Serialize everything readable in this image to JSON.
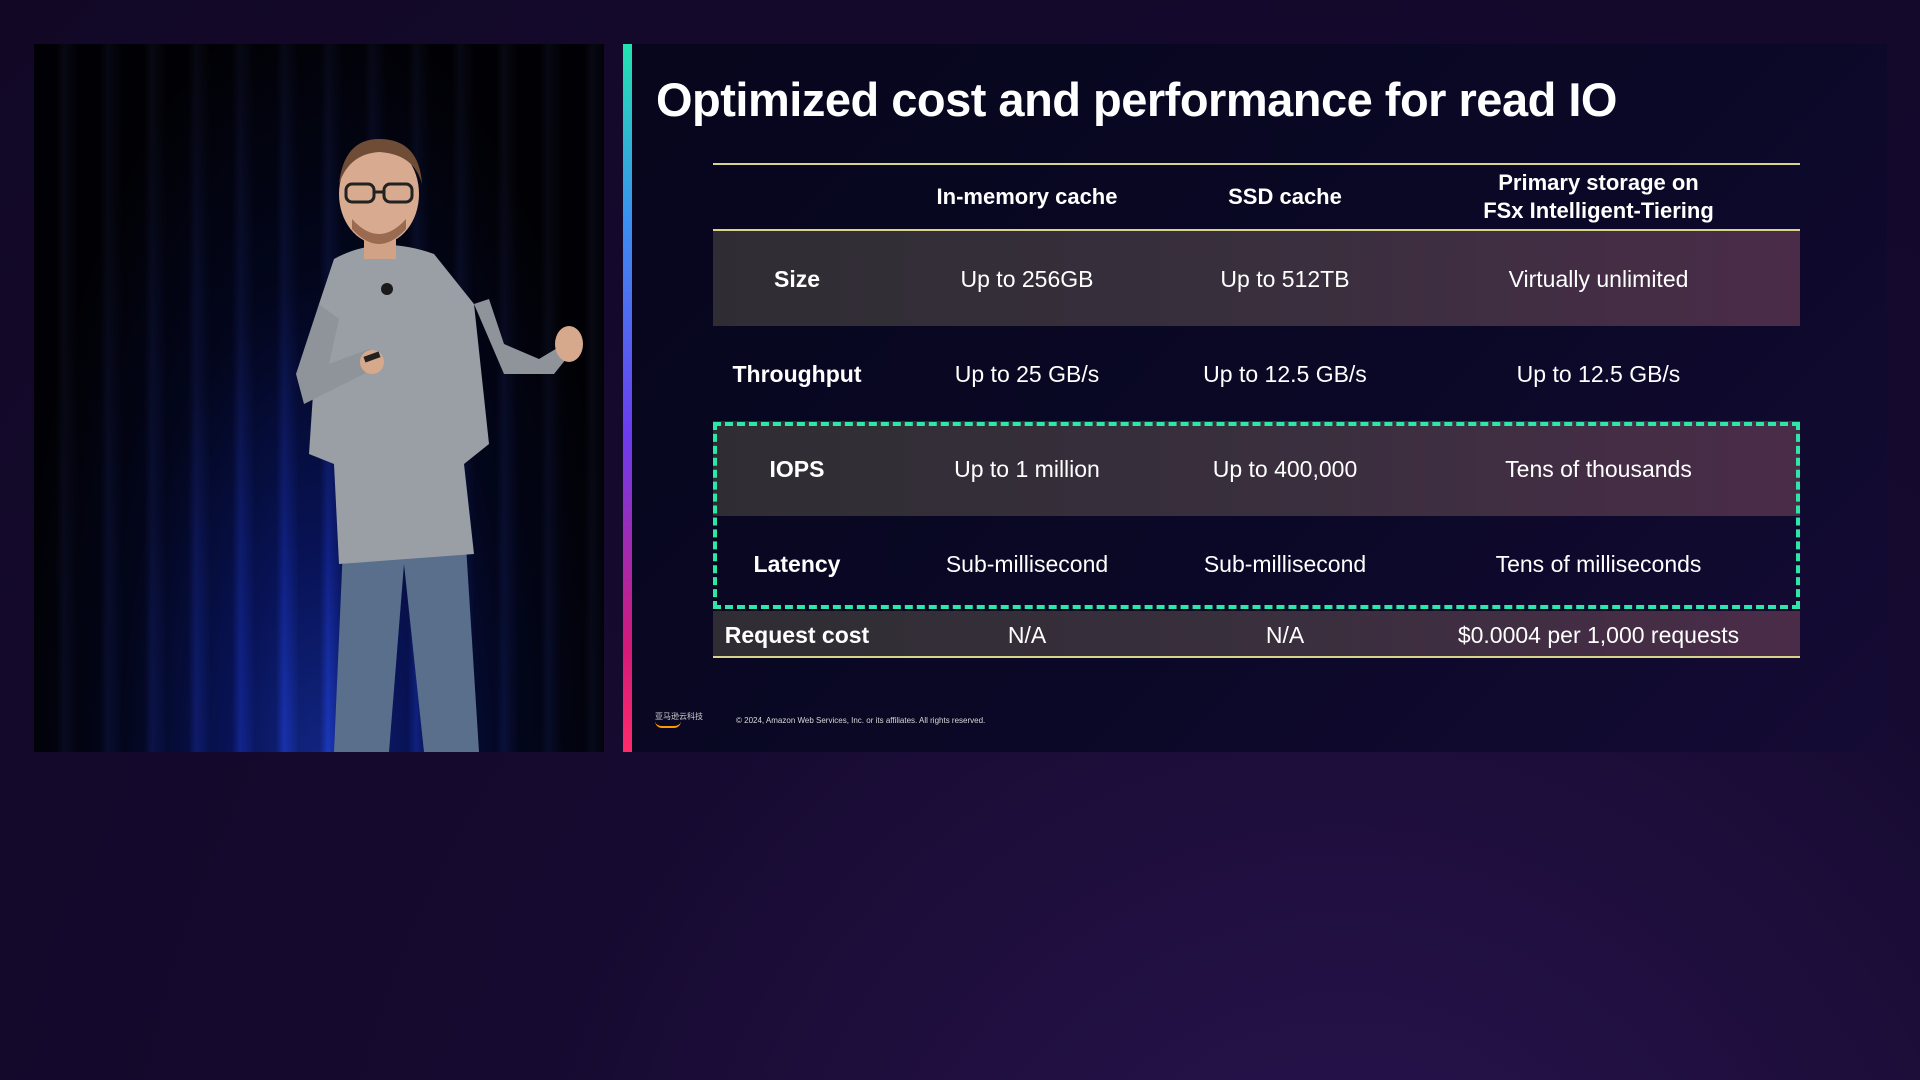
{
  "slide": {
    "title": "Optimized cost and performance for read IO",
    "table": {
      "headers": [
        "",
        "In-memory cache",
        "SSD cache",
        "Primary storage on\nFSx Intelligent-Tiering"
      ],
      "rows": [
        {
          "label": "Size",
          "values": [
            "Up to 256GB",
            "Up to 512TB",
            "Virtually unlimited"
          ]
        },
        {
          "label": "Throughput",
          "values": [
            "Up to 25 GB/s",
            "Up to 12.5 GB/s",
            "Up to 12.5 GB/s"
          ]
        },
        {
          "label": "IOPS",
          "values": [
            "Up to 1 million",
            "Up to 400,000",
            "Tens of thousands"
          ]
        },
        {
          "label": "Latency",
          "values": [
            "Sub-millisecond",
            "Sub-millisecond",
            "Tens of milliseconds"
          ]
        },
        {
          "label": "Request cost",
          "values": [
            "N/A",
            "N/A",
            "$0.0004 per 1,000 requests"
          ]
        }
      ]
    },
    "footer": {
      "logo_text": "亚马逊云科技",
      "copyright": "© 2024, Amazon Web Services, Inc. or its affiliates. All rights reserved."
    }
  },
  "colors": {
    "highlight": "#2ee6a6",
    "rule": "#d8d58a",
    "background": "#160a30"
  }
}
